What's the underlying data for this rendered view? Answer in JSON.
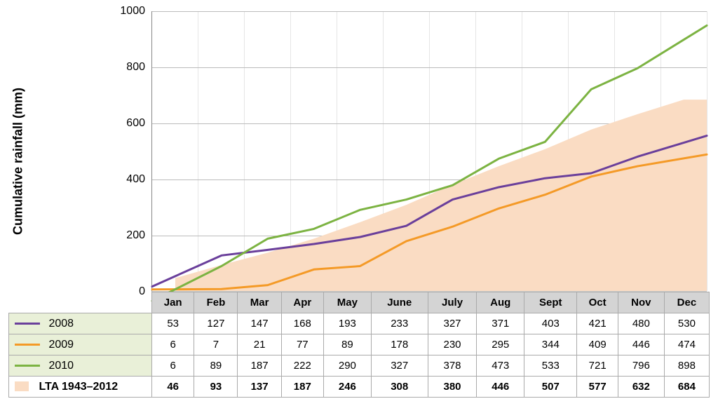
{
  "chart": {
    "type": "line",
    "y_label": "Cumulative rainfall (mm)",
    "y_label_fontsize": 18,
    "ylim": [
      0,
      1000
    ],
    "ytick_step": 200,
    "yticks": [
      0,
      200,
      400,
      600,
      800,
      1000
    ],
    "months": [
      "Jan",
      "Feb",
      "Mar",
      "Apr",
      "May",
      "June",
      "July",
      "Aug",
      "Sept",
      "Oct",
      "Nov",
      "Dec"
    ],
    "grid_color": "#bbbbbb",
    "background_color": "#ffffff",
    "line_width": 3,
    "series": {
      "s2008": {
        "label": "2008",
        "color": "#6a3f9b",
        "values": [
          53,
          127,
          147,
          168,
          193,
          233,
          327,
          371,
          403,
          421,
          480,
          530
        ]
      },
      "s2009": {
        "label": "2009",
        "color": "#f49a27",
        "values": [
          6,
          7,
          21,
          77,
          89,
          178,
          230,
          295,
          344,
          409,
          446,
          474
        ]
      },
      "s2010": {
        "label": "2010",
        "color": "#7cb342",
        "values": [
          6,
          89,
          187,
          222,
          290,
          327,
          378,
          473,
          533,
          721,
          796,
          898
        ]
      },
      "lta": {
        "label": "LTA 1943–2012",
        "color": "#fadcc3",
        "is_area": true,
        "values": [
          46,
          93,
          137,
          187,
          246,
          308,
          380,
          446,
          507,
          577,
          632,
          684
        ]
      }
    },
    "legend_row_bg": "#e9f0d8",
    "table_header_bg": "#d4d4d4",
    "table_border_color": "#aaaaaa",
    "cell_fontsize": 15
  }
}
